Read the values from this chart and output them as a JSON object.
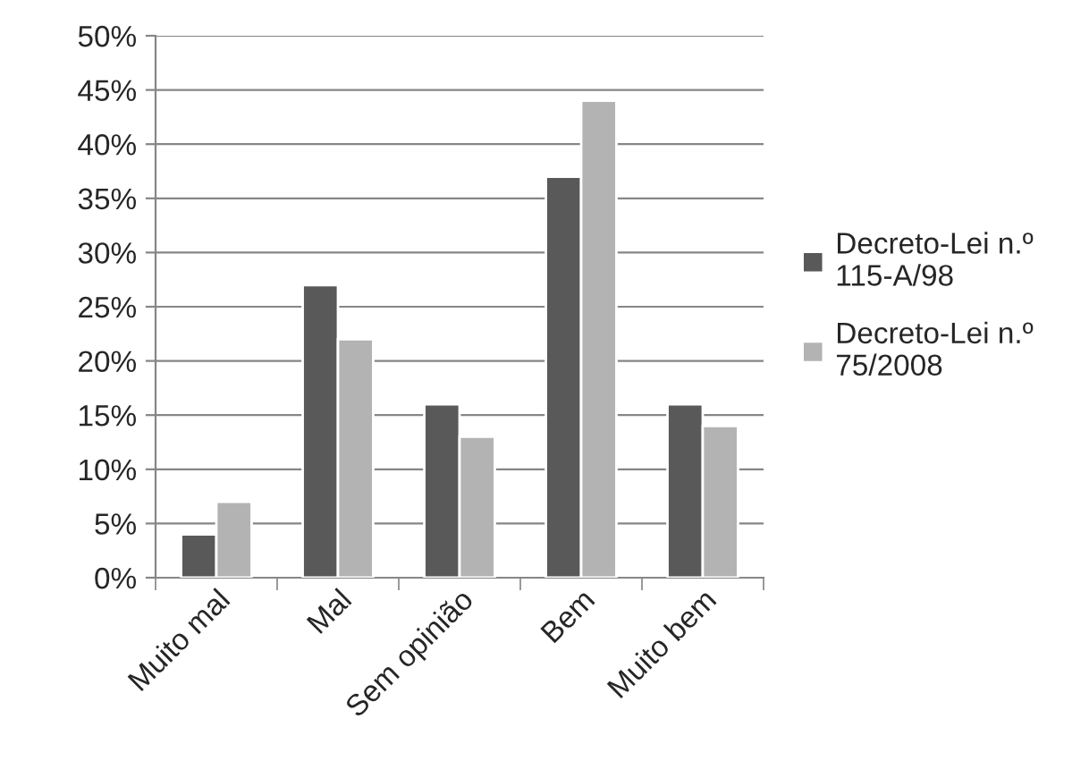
{
  "chart_data": {
    "type": "bar",
    "categories": [
      "Muito mal",
      "Mal",
      "Sem opinião",
      "Bem",
      "Muito bem"
    ],
    "series": [
      {
        "name": "Decreto-Lei n.º\n115-A/98",
        "color": "#595959",
        "values": [
          4,
          27,
          16,
          37,
          16
        ]
      },
      {
        "name": "Decreto-Lei n.º\n75/2008",
        "color": "#b3b3b3",
        "values": [
          7,
          22,
          13,
          44,
          14
        ]
      }
    ],
    "ylim": [
      0,
      50
    ],
    "yticks": [
      {
        "value": 0,
        "label": "0%"
      },
      {
        "value": 5,
        "label": "5%"
      },
      {
        "value": 10,
        "label": "10%"
      },
      {
        "value": 15,
        "label": "15%"
      },
      {
        "value": 20,
        "label": "20%"
      },
      {
        "value": 25,
        "label": "25%"
      },
      {
        "value": 30,
        "label": "30%"
      },
      {
        "value": 35,
        "label": "35%"
      },
      {
        "value": 40,
        "label": "40%"
      },
      {
        "value": 45,
        "label": "45%"
      },
      {
        "value": 50,
        "label": "50%"
      }
    ],
    "grid": "y",
    "legend": "right"
  }
}
